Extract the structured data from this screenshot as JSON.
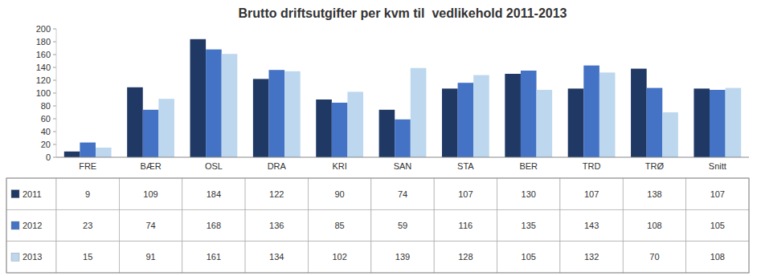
{
  "chart_data": {
    "type": "bar",
    "title": "Brutto driftsutgifter per kvm til  vedlikehold 2011-2013",
    "categories": [
      "FRE",
      "BÆR",
      "OSL",
      "DRA",
      "KRI",
      "SAN",
      "STA",
      "BER",
      "TRD",
      "TRØ",
      "Snitt"
    ],
    "series": [
      {
        "name": "2011",
        "color": "#1F3864",
        "values": [
          9,
          109,
          184,
          122,
          90,
          74,
          107,
          130,
          107,
          138,
          107
        ]
      },
      {
        "name": "2012",
        "color": "#4472C4",
        "values": [
          23,
          74,
          168,
          136,
          85,
          59,
          116,
          135,
          143,
          108,
          105
        ]
      },
      {
        "name": "2013",
        "color": "#BDD7EE",
        "values": [
          15,
          91,
          161,
          134,
          102,
          139,
          128,
          105,
          132,
          70,
          108
        ]
      }
    ],
    "ylim": [
      0,
      200
    ],
    "yticks": [
      0,
      20,
      40,
      60,
      80,
      100,
      120,
      140,
      160,
      180,
      200
    ],
    "grid": false
  }
}
